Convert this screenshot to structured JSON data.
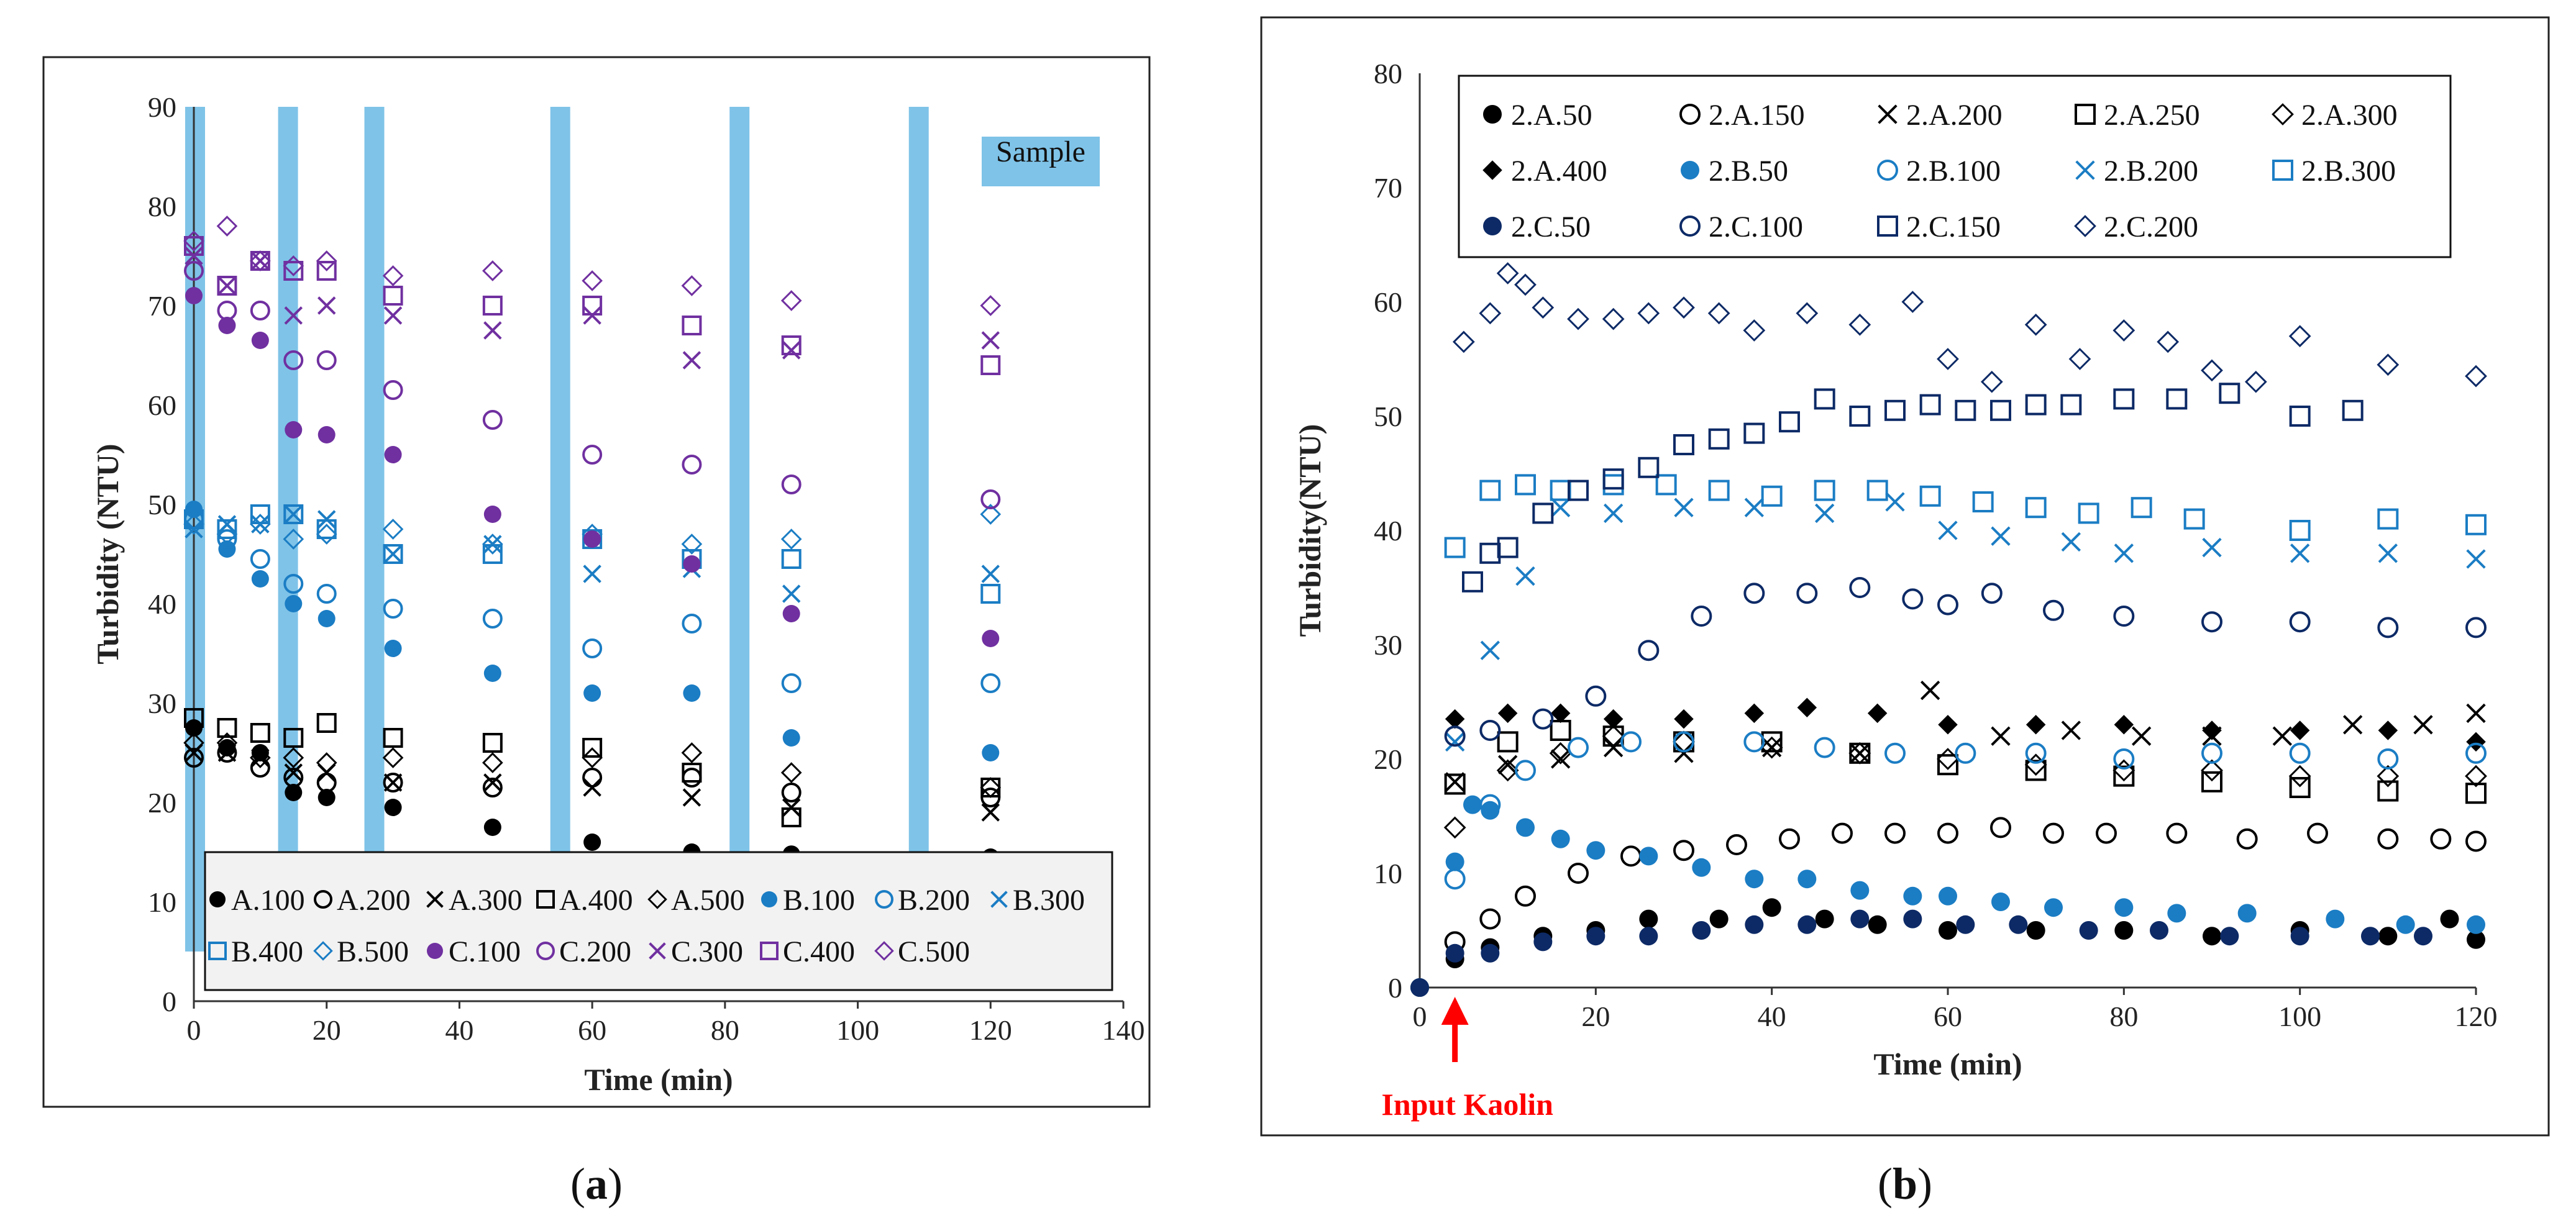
{
  "chart_data": [
    {
      "type": "scatter",
      "caption_open": "(",
      "caption_letter": "a",
      "caption_close": ")",
      "xlabel": "Time (min)",
      "ylabel": "Turbidity (NTU)",
      "xlim": [
        0,
        140
      ],
      "ylim": [
        0,
        90
      ],
      "xticks": [
        0,
        20,
        40,
        60,
        80,
        100,
        120,
        140
      ],
      "yticks": [
        0,
        10,
        20,
        30,
        40,
        50,
        60,
        70,
        80,
        90
      ],
      "sample_label": "Sample",
      "sample_times": [
        0,
        14,
        27,
        55,
        82,
        109
      ],
      "sample_color": "#7fc3e8",
      "x": [
        0,
        5,
        10,
        15,
        20,
        30,
        45,
        60,
        75,
        90,
        120
      ],
      "series": [
        {
          "name": "A.100",
          "marker": "circle-filled",
          "color": "#000000",
          "values": [
            27.5,
            25.5,
            25,
            21,
            20.5,
            19.5,
            17.5,
            16,
            15,
            14.8,
            14.5
          ]
        },
        {
          "name": "A.200",
          "marker": "circle-open",
          "color": "#000000",
          "values": [
            24.5,
            25,
            23.5,
            22.5,
            22,
            22,
            21.5,
            22.5,
            22.5,
            21,
            20.5
          ]
        },
        {
          "name": "A.300",
          "marker": "x",
          "color": "#000000",
          "values": [
            25,
            25,
            24.5,
            23,
            23,
            22,
            22,
            21.5,
            20.5,
            19.5,
            19
          ]
        },
        {
          "name": "A.400",
          "marker": "square-open",
          "color": "#000000",
          "values": [
            28.5,
            27.5,
            27,
            26.5,
            28,
            26.5,
            26,
            25.5,
            23,
            18.5,
            21.5
          ]
        },
        {
          "name": "A.500",
          "marker": "diamond-open",
          "color": "#000000",
          "values": [
            26,
            26,
            24.5,
            24.5,
            24,
            24.5,
            24,
            24.5,
            25,
            23,
            21.5
          ]
        },
        {
          "name": "B.100",
          "marker": "circle-filled",
          "color": "#1b7dc4",
          "values": [
            49.5,
            45.5,
            42.5,
            40,
            38.5,
            35.5,
            33,
            31,
            31,
            26.5,
            25
          ]
        },
        {
          "name": "B.200",
          "marker": "circle-open",
          "color": "#1b7dc4",
          "values": [
            48.5,
            46.5,
            44.5,
            42,
            41,
            39.5,
            38.5,
            35.5,
            38,
            32,
            32
          ]
        },
        {
          "name": "B.300",
          "marker": "x",
          "color": "#1b7dc4",
          "values": [
            47.5,
            48,
            48,
            49,
            48.5,
            45,
            46,
            43,
            43.5,
            41,
            43
          ]
        },
        {
          "name": "B.400",
          "marker": "square-open",
          "color": "#1b7dc4",
          "values": [
            48.5,
            47.5,
            49,
            49,
            47.5,
            45,
            45,
            46.5,
            44.5,
            44.5,
            41
          ]
        },
        {
          "name": "B.500",
          "marker": "diamond-open",
          "color": "#1b7dc4",
          "values": [
            48,
            47,
            48,
            46.5,
            47,
            47.5,
            46,
            47,
            46,
            46.5,
            49
          ]
        },
        {
          "name": "C.100",
          "marker": "circle-filled",
          "color": "#7030a0",
          "values": [
            71,
            68,
            66.5,
            57.5,
            57,
            55,
            49,
            46.5,
            44,
            39,
            36.5
          ]
        },
        {
          "name": "C.200",
          "marker": "circle-open",
          "color": "#7030a0",
          "values": [
            73.5,
            69.5,
            69.5,
            64.5,
            64.5,
            61.5,
            58.5,
            55,
            54,
            52,
            50.5
          ]
        },
        {
          "name": "C.300",
          "marker": "x",
          "color": "#7030a0",
          "values": [
            75,
            72,
            74.5,
            69,
            70,
            69,
            67.5,
            69,
            64.5,
            65.5,
            66.5
          ]
        },
        {
          "name": "C.400",
          "marker": "square-open",
          "color": "#7030a0",
          "values": [
            76,
            72,
            74.5,
            73.5,
            73.5,
            71,
            70,
            70,
            68,
            66,
            64
          ]
        },
        {
          "name": "C.500",
          "marker": "diamond-open",
          "color": "#7030a0",
          "values": [
            76.5,
            78,
            74.5,
            74,
            74.5,
            73,
            73.5,
            72.5,
            72,
            70.5,
            70
          ]
        }
      ]
    },
    {
      "type": "scatter",
      "caption_open": "(",
      "caption_letter": "b",
      "caption_close": ")",
      "xlabel": "Time (min)",
      "ylabel": "Turbidity(NTU)",
      "xlim": [
        0,
        120
      ],
      "ylim": [
        0,
        80
      ],
      "xticks": [
        0,
        20,
        40,
        60,
        80,
        100,
        120
      ],
      "yticks": [
        0,
        10,
        20,
        30,
        40,
        50,
        60,
        70,
        80
      ],
      "annotation": "Input Kaolin",
      "annotation_x": 4,
      "annotation_color": "#ff0000",
      "series": [
        {
          "name": "2.A.50",
          "marker": "circle-filled",
          "color": "#000000",
          "x": [
            0,
            4,
            8,
            14,
            20,
            26,
            34,
            40,
            46,
            52,
            60,
            70,
            80,
            90,
            100,
            110,
            117,
            120
          ],
          "values": [
            0,
            2.5,
            3.5,
            4.5,
            5,
            6,
            6,
            7,
            6,
            5.5,
            5,
            5,
            5,
            4.5,
            5,
            4.5,
            6,
            4.2
          ]
        },
        {
          "name": "2.A.150",
          "marker": "circle-open",
          "color": "#000000",
          "x": [
            4,
            8,
            12,
            18,
            24,
            30,
            36,
            42,
            48,
            54,
            60,
            66,
            72,
            78,
            86,
            94,
            102,
            110,
            116,
            120
          ],
          "values": [
            4,
            6,
            8,
            10,
            11.5,
            12,
            12.5,
            13,
            13.5,
            13.5,
            13.5,
            14,
            13.5,
            13.5,
            13.5,
            13,
            13.5,
            13,
            13,
            12.8
          ]
        },
        {
          "name": "2.A.200",
          "marker": "x",
          "color": "#000000",
          "x": [
            4,
            10,
            16,
            22,
            30,
            40,
            50,
            58,
            66,
            74,
            82,
            90,
            98,
            106,
            114,
            120
          ],
          "values": [
            18,
            19.5,
            20,
            21,
            20.5,
            21,
            20.5,
            26,
            22,
            22.5,
            22,
            22,
            22,
            23,
            23,
            24
          ]
        },
        {
          "name": "2.A.250",
          "marker": "square-open",
          "color": "#000000",
          "x": [
            4,
            10,
            16,
            22,
            30,
            40,
            50,
            60,
            70,
            80,
            90,
            100,
            110,
            120
          ],
          "values": [
            17.8,
            21.5,
            22.5,
            22,
            21.5,
            21.5,
            20.5,
            19.5,
            19,
            18.5,
            18,
            17.5,
            17.2,
            17
          ]
        },
        {
          "name": "2.A.300",
          "marker": "diamond-open",
          "color": "#000000",
          "x": [
            4,
            10,
            16,
            22,
            30,
            40,
            50,
            60,
            70,
            80,
            90,
            100,
            110,
            120
          ],
          "values": [
            14,
            19,
            20.5,
            22,
            21.5,
            21,
            20.5,
            20,
            19.5,
            19,
            19,
            18.5,
            18.5,
            18.5
          ]
        },
        {
          "name": "2.A.400",
          "marker": "diamond-filled",
          "color": "#000000",
          "x": [
            4,
            10,
            16,
            22,
            30,
            38,
            44,
            52,
            60,
            70,
            80,
            90,
            100,
            110,
            120
          ],
          "values": [
            23.5,
            24,
            24,
            23.5,
            23.5,
            24,
            24.5,
            24,
            23,
            23,
            23,
            22.5,
            22.5,
            22.5,
            21.5
          ]
        },
        {
          "name": "2.B.50",
          "marker": "circle-filled",
          "color": "#1b7dc4",
          "x": [
            0,
            4,
            6,
            8,
            12,
            16,
            20,
            26,
            32,
            38,
            44,
            50,
            56,
            60,
            66,
            72,
            80,
            86,
            94,
            104,
            112,
            120
          ],
          "values": [
            0,
            11,
            16,
            15.5,
            14,
            13,
            12,
            11.5,
            10.5,
            9.5,
            9.5,
            8.5,
            8,
            8,
            7.5,
            7,
            7,
            6.5,
            6.5,
            6,
            5.5,
            5.5
          ]
        },
        {
          "name": "2.B.100",
          "marker": "circle-open",
          "color": "#1b7dc4",
          "x": [
            4,
            8,
            12,
            18,
            24,
            30,
            38,
            46,
            54,
            62,
            70,
            80,
            90,
            100,
            110,
            120
          ],
          "values": [
            9.5,
            16,
            19,
            21,
            21.5,
            21.5,
            21.5,
            21,
            20.5,
            20.5,
            20.5,
            20,
            20.5,
            20.5,
            20,
            20.5
          ]
        },
        {
          "name": "2.B.200",
          "marker": "x",
          "color": "#1b7dc4",
          "x": [
            4,
            8,
            12,
            16,
            22,
            30,
            38,
            46,
            54,
            60,
            66,
            74,
            80,
            90,
            100,
            110,
            120
          ],
          "values": [
            21.5,
            29.5,
            36,
            42,
            41.5,
            42,
            42,
            41.5,
            42.5,
            40,
            39.5,
            39,
            38,
            38.5,
            38,
            38,
            37.5
          ]
        },
        {
          "name": "2.B.300",
          "marker": "square-open",
          "color": "#1b7dc4",
          "x": [
            4,
            8,
            12,
            16,
            22,
            28,
            34,
            40,
            46,
            52,
            58,
            64,
            70,
            76,
            82,
            88,
            100,
            110,
            120
          ],
          "values": [
            38.5,
            43.5,
            44,
            43.5,
            44,
            44,
            43.5,
            43,
            43.5,
            43.5,
            43,
            42.5,
            42,
            41.5,
            42,
            41,
            40,
            41,
            40.5
          ]
        },
        {
          "name": "2.C.50",
          "marker": "circle-filled",
          "color": "#0d2a66",
          "x": [
            0,
            4,
            8,
            14,
            20,
            26,
            32,
            38,
            44,
            50,
            56,
            62,
            68,
            76,
            84,
            92,
            100,
            108,
            114
          ],
          "values": [
            0,
            3,
            3,
            4,
            4.5,
            4.5,
            5,
            5.5,
            5.5,
            6,
            6,
            5.5,
            5.5,
            5,
            5,
            4.5,
            4.5,
            4.5,
            4.5
          ]
        },
        {
          "name": "2.C.100",
          "marker": "circle-open",
          "color": "#0d2a66",
          "x": [
            4,
            8,
            14,
            20,
            26,
            32,
            38,
            44,
            50,
            56,
            60,
            65,
            72,
            80,
            90,
            100,
            110,
            120
          ],
          "values": [
            22,
            22.5,
            23.5,
            25.5,
            29.5,
            32.5,
            34.5,
            34.5,
            35,
            34,
            33.5,
            34.5,
            33,
            32.5,
            32,
            32,
            31.5,
            31.5
          ]
        },
        {
          "name": "2.C.150",
          "marker": "square-open",
          "color": "#0d2a66",
          "x": [
            6,
            8,
            10,
            14,
            18,
            22,
            26,
            30,
            34,
            38,
            42,
            46,
            50,
            54,
            58,
            62,
            66,
            70,
            74,
            80,
            86,
            92,
            100,
            106
          ],
          "values": [
            35.5,
            38,
            38.5,
            41.5,
            43.5,
            44.5,
            45.5,
            47.5,
            48,
            48.5,
            49.5,
            51.5,
            50,
            50.5,
            51,
            50.5,
            50.5,
            51,
            51,
            51.5,
            51.5,
            52,
            50,
            50.5
          ]
        },
        {
          "name": "2.C.200",
          "marker": "diamond-open",
          "color": "#0d2a66",
          "x": [
            5,
            8,
            10,
            12,
            14,
            18,
            22,
            26,
            30,
            34,
            38,
            44,
            50,
            56,
            60,
            65,
            70,
            75,
            80,
            85,
            90,
            95,
            100,
            110,
            120
          ],
          "values": [
            56.5,
            59,
            62.5,
            61.5,
            59.5,
            58.5,
            58.5,
            59,
            59.5,
            59,
            57.5,
            59,
            58,
            60,
            55,
            53,
            58,
            55,
            57.5,
            56.5,
            54,
            53,
            57,
            54.5,
            53.5
          ]
        }
      ]
    }
  ]
}
